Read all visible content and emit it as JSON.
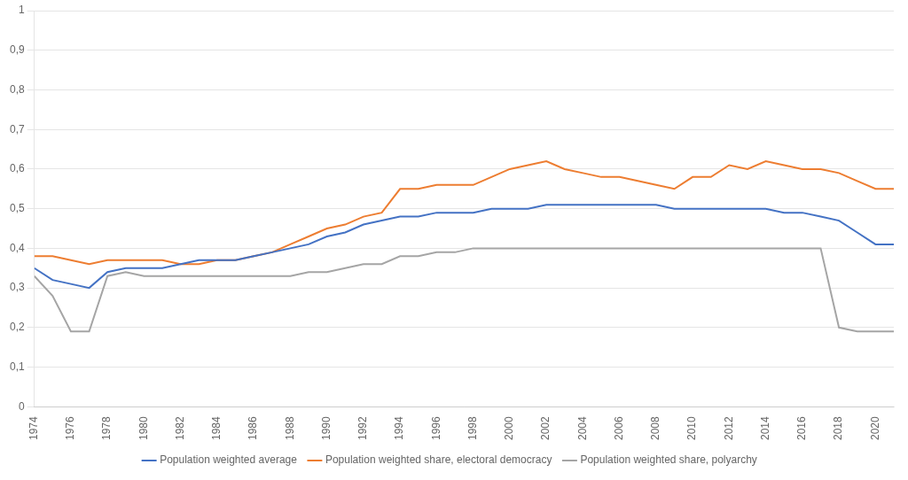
{
  "chart_data": {
    "type": "line",
    "x": [
      1974,
      1975,
      1976,
      1977,
      1978,
      1979,
      1980,
      1981,
      1982,
      1983,
      1984,
      1985,
      1986,
      1987,
      1988,
      1989,
      1990,
      1991,
      1992,
      1993,
      1994,
      1995,
      1996,
      1997,
      1998,
      1999,
      2000,
      2001,
      2002,
      2003,
      2004,
      2005,
      2006,
      2007,
      2008,
      2009,
      2010,
      2011,
      2012,
      2013,
      2014,
      2015,
      2016,
      2017,
      2018,
      2019,
      2020,
      2021
    ],
    "series": [
      {
        "name": "Population weighted average",
        "color": "#4472C4",
        "values": [
          0.35,
          0.32,
          0.31,
          0.3,
          0.34,
          0.35,
          0.35,
          0.35,
          0.36,
          0.37,
          0.37,
          0.37,
          0.38,
          0.39,
          0.4,
          0.41,
          0.43,
          0.44,
          0.46,
          0.47,
          0.48,
          0.48,
          0.49,
          0.49,
          0.49,
          0.5,
          0.5,
          0.5,
          0.51,
          0.51,
          0.51,
          0.51,
          0.51,
          0.51,
          0.51,
          0.5,
          0.5,
          0.5,
          0.5,
          0.5,
          0.5,
          0.49,
          0.49,
          0.48,
          0.47,
          0.44,
          0.41,
          0.41
        ]
      },
      {
        "name": "Population weighted share, electoral democracy",
        "color": "#ED7D31",
        "values": [
          0.38,
          0.38,
          0.37,
          0.36,
          0.37,
          0.37,
          0.37,
          0.37,
          0.36,
          0.36,
          0.37,
          0.37,
          0.38,
          0.39,
          0.41,
          0.43,
          0.45,
          0.46,
          0.48,
          0.49,
          0.55,
          0.55,
          0.56,
          0.56,
          0.56,
          0.58,
          0.6,
          0.61,
          0.62,
          0.6,
          0.59,
          0.58,
          0.58,
          0.57,
          0.56,
          0.55,
          0.58,
          0.58,
          0.61,
          0.6,
          0.62,
          0.61,
          0.6,
          0.6,
          0.59,
          0.57,
          0.55,
          0.55
        ]
      },
      {
        "name": "Population weighted share, polyarchy",
        "color": "#A5A5A5",
        "values": [
          0.33,
          0.28,
          0.19,
          0.19,
          0.33,
          0.34,
          0.33,
          0.33,
          0.33,
          0.33,
          0.33,
          0.33,
          0.33,
          0.33,
          0.33,
          0.34,
          0.34,
          0.35,
          0.36,
          0.36,
          0.38,
          0.38,
          0.39,
          0.39,
          0.4,
          0.4,
          0.4,
          0.4,
          0.4,
          0.4,
          0.4,
          0.4,
          0.4,
          0.4,
          0.4,
          0.4,
          0.4,
          0.4,
          0.4,
          0.4,
          0.4,
          0.4,
          0.4,
          0.4,
          0.2,
          0.19,
          0.19,
          0.19
        ]
      }
    ],
    "xlim": [
      1974,
      2021
    ],
    "xticks": [
      1974,
      1976,
      1978,
      1980,
      1982,
      1984,
      1986,
      1988,
      1990,
      1992,
      1994,
      1996,
      1998,
      2000,
      2002,
      2004,
      2006,
      2008,
      2010,
      2012,
      2014,
      2016,
      2018,
      2020
    ],
    "ylim": [
      0,
      1
    ],
    "yticks": [
      0,
      {
        "value": 0.1,
        "label": "0,1"
      },
      {
        "value": 0.2,
        "label": "0,2"
      },
      {
        "value": 0.3,
        "label": "0,3"
      },
      {
        "value": 0.4,
        "label": "0,4"
      },
      {
        "value": 0.5,
        "label": "0,5"
      },
      {
        "value": 0.6,
        "label": "0,6"
      },
      {
        "value": 0.7,
        "label": "0,7"
      },
      {
        "value": 0.8,
        "label": "0,8"
      },
      {
        "value": 0.9,
        "label": "0,9"
      },
      1
    ],
    "grid": true,
    "legend": "bottom"
  }
}
